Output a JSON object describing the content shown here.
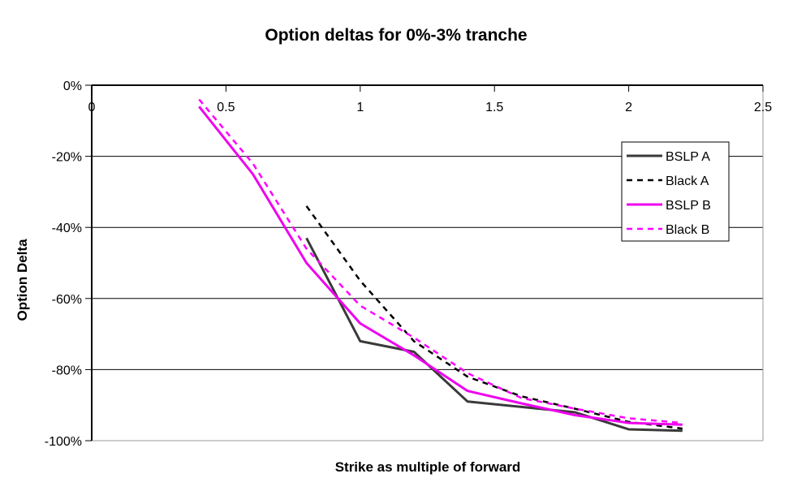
{
  "chart_data": {
    "type": "line",
    "title": "Option deltas for 0%-3% tranche",
    "xlabel": "Strike as multiple of forward",
    "ylabel": "Option Delta",
    "xlim": [
      0,
      2.5
    ],
    "ylim": [
      -100,
      0
    ],
    "x_ticks": [
      0,
      0.5,
      1,
      1.5,
      2,
      2.5
    ],
    "x_tick_labels": [
      "0",
      "0.5",
      "1",
      "1.5",
      "2",
      "2.5"
    ],
    "y_ticks": [
      0,
      -20,
      -40,
      -60,
      -80,
      -100
    ],
    "y_tick_labels": [
      "0%",
      "-20%",
      "-40%",
      "-60%",
      "-80%",
      "-100%"
    ],
    "grid": "horizontal",
    "legend_position": "inside-top-right",
    "series": [
      {
        "name": "BSLP A",
        "color": "#3a3a3a",
        "style": "solid",
        "points": [
          [
            0.8,
            -43
          ],
          [
            1.0,
            -72
          ],
          [
            1.2,
            -75
          ],
          [
            1.4,
            -89
          ],
          [
            1.6,
            -90.5
          ],
          [
            1.8,
            -92
          ],
          [
            2.0,
            -96.8
          ],
          [
            2.2,
            -97.2
          ]
        ]
      },
      {
        "name": "Black A",
        "color": "#000000",
        "style": "dashed",
        "points": [
          [
            0.8,
            -34
          ],
          [
            1.0,
            -55
          ],
          [
            1.2,
            -72
          ],
          [
            1.4,
            -82
          ],
          [
            1.6,
            -87.5
          ],
          [
            1.8,
            -91
          ],
          [
            2.0,
            -94.7
          ],
          [
            2.2,
            -96.6
          ]
        ]
      },
      {
        "name": "BSLP B",
        "color": "#ee00ee",
        "style": "solid",
        "points": [
          [
            0.4,
            -6
          ],
          [
            0.6,
            -25
          ],
          [
            0.8,
            -50
          ],
          [
            1.0,
            -67
          ],
          [
            1.2,
            -76
          ],
          [
            1.4,
            -86
          ],
          [
            1.6,
            -89.5
          ],
          [
            1.8,
            -92.8
          ],
          [
            2.0,
            -95
          ],
          [
            2.2,
            -95.5
          ]
        ]
      },
      {
        "name": "Black B",
        "color": "#ff00ff",
        "style": "dashed",
        "points": [
          [
            0.4,
            -4
          ],
          [
            0.6,
            -22
          ],
          [
            0.8,
            -46
          ],
          [
            1.0,
            -62
          ],
          [
            1.2,
            -71
          ],
          [
            1.4,
            -81
          ],
          [
            1.6,
            -88
          ],
          [
            1.8,
            -91
          ],
          [
            2.0,
            -93.7
          ],
          [
            2.2,
            -95
          ]
        ]
      }
    ]
  }
}
